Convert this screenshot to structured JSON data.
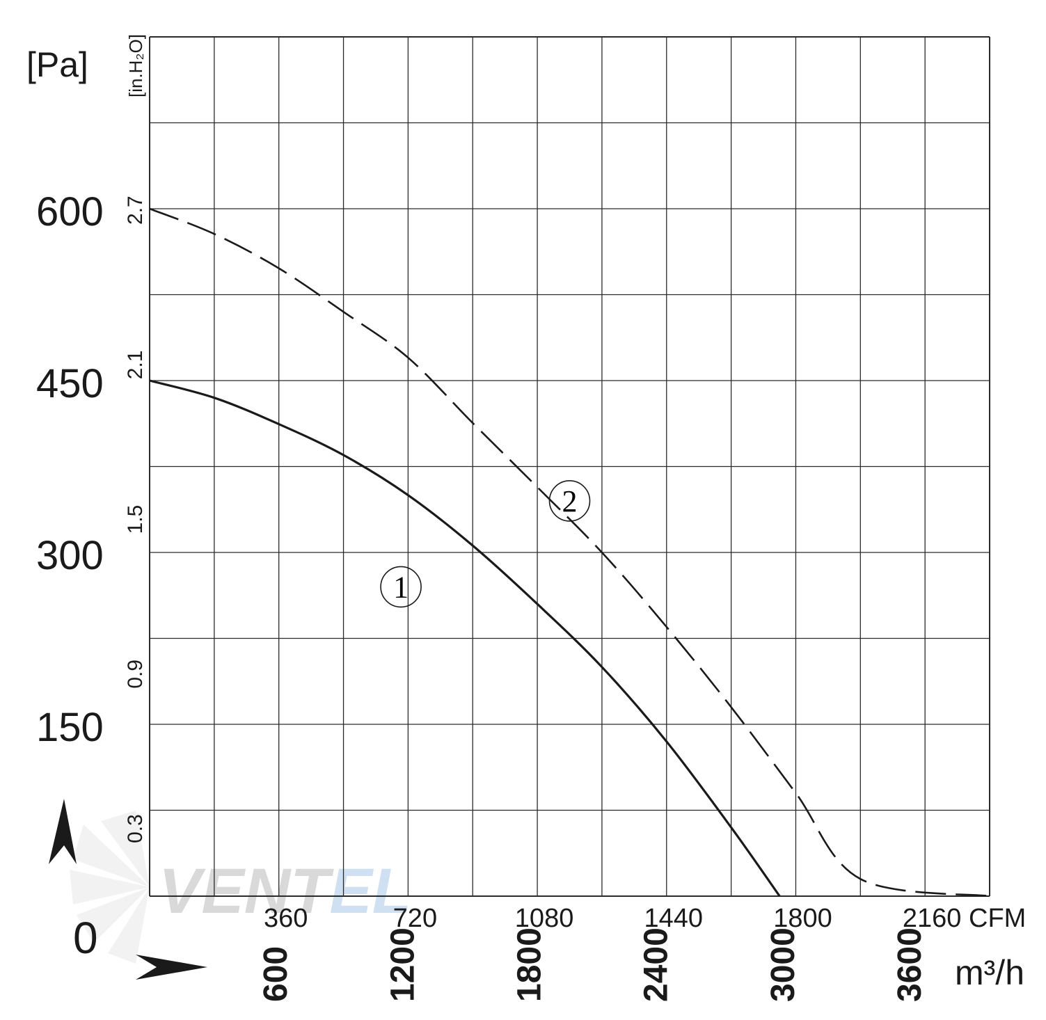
{
  "chart_data": {
    "type": "line",
    "title": "",
    "x_axis": {
      "primary_unit": "CFM",
      "primary_ticks": [
        "360",
        "720",
        "1080",
        "1440",
        "1800",
        "2160"
      ],
      "primary_range": [
        0,
        2340
      ],
      "secondary_unit": "m³/h",
      "secondary_ticks": [
        "600",
        "1200",
        "1800",
        "2400",
        "3000",
        "3600"
      ]
    },
    "y_axis": {
      "primary_unit": "[Pa]",
      "primary_ticks": [
        "150",
        "300",
        "450",
        "600"
      ],
      "primary_range": [
        0,
        750
      ],
      "secondary_unit": "[in.H₂O]",
      "secondary_ticks": [
        "0.3",
        "0.9",
        "1.5",
        "2.1",
        "2.7"
      ]
    },
    "origin_label": "0",
    "grid": true,
    "series": [
      {
        "name": "①",
        "style": "solid",
        "points": [
          [
            0,
            450
          ],
          [
            180,
            435
          ],
          [
            360,
            412
          ],
          [
            540,
            385
          ],
          [
            720,
            350
          ],
          [
            900,
            306
          ],
          [
            1080,
            255
          ],
          [
            1260,
            200
          ],
          [
            1440,
            135
          ],
          [
            1620,
            60
          ],
          [
            1755,
            0
          ]
        ]
      },
      {
        "name": "②",
        "style": "dashed",
        "points": [
          [
            0,
            600
          ],
          [
            180,
            578
          ],
          [
            360,
            548
          ],
          [
            540,
            510
          ],
          [
            720,
            470
          ],
          [
            900,
            413
          ],
          [
            1080,
            357
          ],
          [
            1260,
            300
          ],
          [
            1440,
            235
          ],
          [
            1620,
            165
          ],
          [
            1800,
            90
          ],
          [
            1980,
            15
          ],
          [
            2340,
            0
          ]
        ]
      }
    ]
  },
  "watermark": {
    "text_a": "VENT",
    "text_b": "EL"
  },
  "colors": {
    "curve": "#1a1a1a",
    "grid": "#2a2a2a",
    "watermark": "#d9d9d9",
    "watermark_accent": "#cfe0f2"
  }
}
